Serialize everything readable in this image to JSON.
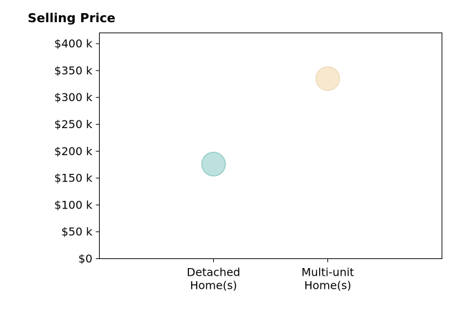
{
  "chart_data": {
    "type": "scatter",
    "title": "Selling Price",
    "xlabel": "",
    "ylabel": "",
    "categories": [
      [
        "Detached",
        "Home(s)"
      ],
      [
        "Multi-unit",
        "Home(s)"
      ]
    ],
    "values": [
      176000,
      335000
    ],
    "ylim": [
      0,
      420000
    ],
    "yticks": [
      0,
      50000,
      100000,
      150000,
      200000,
      250000,
      300000,
      350000,
      400000
    ],
    "ytick_labels": [
      "$0",
      "$50 k",
      "$100 k",
      "$150 k",
      "$200 k",
      "$250 k",
      "$300 k",
      "$350 k",
      "$400 k"
    ],
    "xlim": [
      -1,
      2
    ],
    "grid": false,
    "colors": [
      "#b2dcd8",
      "#f7e5c6"
    ],
    "marker_edge_colors": [
      "#96cdc7",
      "#eeddbc"
    ]
  }
}
